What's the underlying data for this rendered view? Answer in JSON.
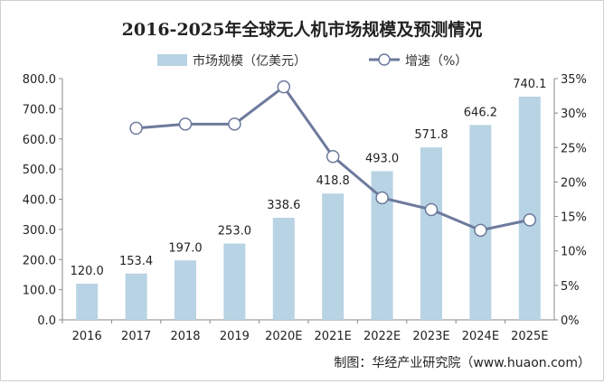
{
  "chart_data": {
    "type": "bar+line",
    "title": "2016-2025年全球无人机市场规模及预测情况",
    "categories": [
      "2016",
      "2017",
      "2018",
      "2019",
      "2020E",
      "2021E",
      "2022E",
      "2023E",
      "2024E",
      "2025E"
    ],
    "series": [
      {
        "name": "市场规模（亿美元）",
        "type": "bar",
        "axis": "left",
        "color": "#b8d3e4",
        "values": [
          120.0,
          153.4,
          197.0,
          253.0,
          338.6,
          418.8,
          493.0,
          571.8,
          646.2,
          740.1
        ],
        "labels": [
          "120.0",
          "153.4",
          "197.0",
          "253.0",
          "338.6",
          "418.8",
          "493.0",
          "571.8",
          "646.2",
          "740.1"
        ]
      },
      {
        "name": "增速（%）",
        "type": "line",
        "axis": "right",
        "color": "#6d7a9c",
        "values": [
          null,
          27.8,
          28.4,
          28.4,
          33.8,
          23.7,
          17.7,
          16.0,
          13.0,
          14.5
        ]
      }
    ],
    "y_left": {
      "range": [
        0,
        800
      ],
      "ticks": [
        "0.0",
        "100.0",
        "200.0",
        "300.0",
        "400.0",
        "500.0",
        "600.0",
        "700.0",
        "800.0"
      ]
    },
    "y_right": {
      "range": [
        0,
        35
      ],
      "ticks": [
        "0%",
        "5%",
        "10%",
        "15%",
        "20%",
        "25%",
        "30%",
        "35%"
      ]
    },
    "legend_placement": "top-center",
    "grid": false,
    "source": "制图：华经产业研究院（www.huaon.com）"
  }
}
